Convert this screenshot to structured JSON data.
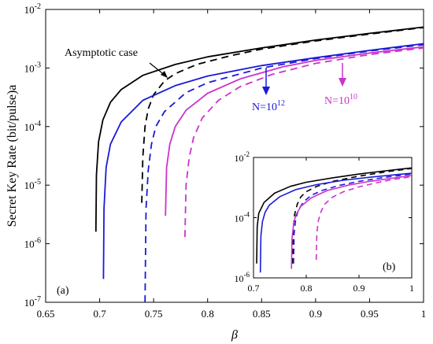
{
  "chart_data": [
    {
      "panel": "(a)",
      "type": "line",
      "xlabel": "β",
      "ylabel": "Secret Key Rate (bit/pulse)a",
      "xlim": [
        0.65,
        1.0
      ],
      "ylim": [
        1e-07,
        0.01
      ],
      "yscale": "log",
      "grid": false,
      "x_ticks": [
        "0.65",
        "0.7",
        "0.75",
        "0.8",
        "0.85",
        "0.9",
        "0.95",
        "1"
      ],
      "y_ticks": [
        {
          "base": "10",
          "exp": "-7"
        },
        {
          "base": "10",
          "exp": "-6"
        },
        {
          "base": "10",
          "exp": "-5"
        },
        {
          "base": "10",
          "exp": "-4"
        },
        {
          "base": "10",
          "exp": "-3"
        },
        {
          "base": "10",
          "exp": "-2"
        }
      ],
      "annotations": {
        "asymptotic": "Asymptotic case",
        "n12": {
          "base": "N=10",
          "exp": "12"
        },
        "n10": {
          "base": "N=10",
          "exp": "10"
        },
        "panel_label": "(a)"
      },
      "series": [
        {
          "color": "#000000",
          "dash": "solid",
          "x": [
            0.6965,
            0.697,
            0.699,
            0.703,
            0.71,
            0.72,
            0.74,
            0.77,
            0.8,
            0.85,
            0.9,
            0.95,
            1.0
          ],
          "y": [
            1.6e-06,
            1.5e-05,
            5.5e-05,
            0.00013,
            0.00026,
            0.00043,
            0.00075,
            0.00115,
            0.00155,
            0.0022,
            0.003,
            0.0039,
            0.005
          ]
        },
        {
          "color": "#000000",
          "dash": "dashed",
          "x": [
            0.739,
            0.74,
            0.742,
            0.745,
            0.75,
            0.76,
            0.77,
            0.79,
            0.82,
            0.85,
            0.9,
            0.95,
            1.0
          ],
          "y": [
            5e-06,
            3e-05,
            0.0001,
            0.0002,
            0.00035,
            0.0006,
            0.0008,
            0.00115,
            0.0016,
            0.0021,
            0.0029,
            0.0038,
            0.0049
          ]
        },
        {
          "color": "#1a1ad6",
          "dash": "solid",
          "x": [
            0.7035,
            0.704,
            0.706,
            0.71,
            0.72,
            0.74,
            0.77,
            0.8,
            0.85,
            0.9,
            0.95,
            1.0
          ],
          "y": [
            2.5e-07,
            4e-06,
            2e-05,
            5e-05,
            0.00012,
            0.00028,
            0.0005,
            0.00073,
            0.0011,
            0.0015,
            0.002,
            0.0026
          ]
        },
        {
          "color": "#1a1ad6",
          "dash": "dashed",
          "x": [
            0.742,
            0.743,
            0.745,
            0.748,
            0.752,
            0.76,
            0.78,
            0.8,
            0.85,
            0.9,
            0.95,
            1.0
          ],
          "y": [
            1e-07,
            4e-06,
            1.8e-05,
            5e-05,
            0.0001,
            0.00018,
            0.00038,
            0.00056,
            0.001,
            0.00145,
            0.00195,
            0.0025
          ]
        },
        {
          "color": "#cc33cc",
          "dash": "solid",
          "x": [
            0.761,
            0.762,
            0.765,
            0.77,
            0.78,
            0.8,
            0.83,
            0.87,
            0.9,
            0.95,
            1.0
          ],
          "y": [
            3e-06,
            2e-05,
            5e-05,
            0.0001,
            0.00019,
            0.00037,
            0.00065,
            0.00105,
            0.00135,
            0.0018,
            0.0023
          ]
        },
        {
          "color": "#cc33cc",
          "dash": "dashed",
          "x": [
            0.779,
            0.78,
            0.783,
            0.787,
            0.795,
            0.81,
            0.83,
            0.86,
            0.9,
            0.95,
            1.0
          ],
          "y": [
            1.3e-06,
            1e-05,
            3e-05,
            6.5e-05,
            0.00014,
            0.00028,
            0.00048,
            0.00078,
            0.0012,
            0.0017,
            0.0022
          ]
        }
      ]
    },
    {
      "panel": "(b)",
      "type": "line",
      "xlim": [
        0.7,
        1.0
      ],
      "ylim": [
        1e-06,
        0.01
      ],
      "yscale": "log",
      "x_ticks": [
        "0.7",
        "0.8",
        "0.9",
        "1"
      ],
      "y_ticks": [
        {
          "base": "10",
          "exp": "-6"
        },
        {
          "base": "10",
          "exp": "-4"
        },
        {
          "base": "10",
          "exp": "-2"
        }
      ],
      "annotations": {
        "panel_label": "(b)"
      },
      "series": [
        {
          "color": "#000000",
          "dash": "solid",
          "x": [
            0.706,
            0.707,
            0.71,
            0.72,
            0.74,
            0.77,
            0.8,
            0.85,
            0.9,
            0.95,
            1.0
          ],
          "y": [
            3e-06,
            5e-05,
            0.00014,
            0.00032,
            0.00065,
            0.0011,
            0.0015,
            0.0021,
            0.0028,
            0.0036,
            0.0045
          ]
        },
        {
          "color": "#000000",
          "dash": "dashed",
          "x": [
            0.774,
            0.775,
            0.778,
            0.783,
            0.79,
            0.8,
            0.82,
            0.85,
            0.9,
            0.95,
            1.0
          ],
          "y": [
            3e-06,
            4e-05,
            0.00013,
            0.00028,
            0.0005,
            0.00073,
            0.0011,
            0.0016,
            0.0024,
            0.0033,
            0.0043
          ]
        },
        {
          "color": "#1a1ad6",
          "dash": "solid",
          "x": [
            0.713,
            0.714,
            0.717,
            0.722,
            0.73,
            0.75,
            0.78,
            0.82,
            0.87,
            0.92,
            1.0
          ],
          "y": [
            1.5e-06,
            2.5e-05,
            7.5e-05,
            0.00015,
            0.00026,
            0.0005,
            0.00085,
            0.00125,
            0.00175,
            0.0022,
            0.003
          ]
        },
        {
          "color": "#1a1ad6",
          "dash": "dashed",
          "x": [
            0.776,
            0.777,
            0.78,
            0.785,
            0.795,
            0.81,
            0.83,
            0.86,
            0.9,
            0.95,
            1.0
          ],
          "y": [
            3e-06,
            3e-05,
            9e-05,
            0.00018,
            0.00034,
            0.00056,
            0.0008,
            0.00115,
            0.0016,
            0.0022,
            0.0028
          ]
        },
        {
          "color": "#cc33cc",
          "dash": "solid",
          "x": [
            0.772,
            0.773,
            0.776,
            0.78,
            0.79,
            0.81,
            0.84,
            0.88,
            0.92,
            0.96,
            1.0
          ],
          "y": [
            2e-06,
            2e-05,
            6e-05,
            0.00012,
            0.00024,
            0.00046,
            0.0008,
            0.0012,
            0.0016,
            0.002,
            0.0025
          ]
        },
        {
          "color": "#cc33cc",
          "dash": "dashed",
          "x": [
            0.819,
            0.82,
            0.823,
            0.828,
            0.835,
            0.85,
            0.87,
            0.9,
            0.93,
            0.96,
            1.0
          ],
          "y": [
            4e-06,
            3e-05,
            8e-05,
            0.00016,
            0.00028,
            0.00048,
            0.00072,
            0.00105,
            0.0014,
            0.0018,
            0.0023
          ]
        }
      ]
    }
  ]
}
